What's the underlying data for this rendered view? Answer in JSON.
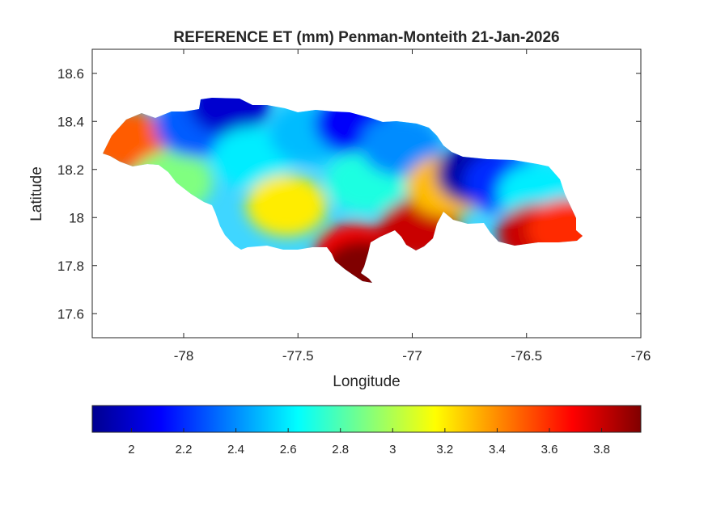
{
  "title": "REFERENCE ET (mm) Penman-Monteith 21-Jan-2026",
  "axes": {
    "xlabel": "Longitude",
    "ylabel": "Latitude",
    "xlim": [
      -78.4,
      -76
    ],
    "ylim": [
      17.5,
      18.7
    ],
    "xticks": [
      -78,
      -77.5,
      -77,
      -76.5,
      -76
    ],
    "xtick_labels": [
      "-78",
      "-77.5",
      "-77",
      "-76.5",
      "-76"
    ],
    "yticks": [
      17.6,
      17.8,
      18,
      18.2,
      18.4,
      18.6
    ],
    "ytick_labels": [
      "17.6",
      "17.8",
      "18",
      "18.2",
      "18.4",
      "18.6"
    ],
    "grid": false
  },
  "colorbar": {
    "location": "below",
    "colormap": "jet",
    "clim": [
      1.85,
      3.95
    ],
    "ticks": [
      2,
      2.2,
      2.4,
      2.6,
      2.8,
      3,
      3.2,
      3.4,
      3.6,
      3.8
    ],
    "tick_labels": [
      "2",
      "2.2",
      "2.4",
      "2.6",
      "2.8",
      "3",
      "3.2",
      "3.4",
      "3.6",
      "3.8"
    ],
    "colors": [
      "#00008f",
      "#0000ff",
      "#0080ff",
      "#00ffff",
      "#80ff80",
      "#ffff00",
      "#ff8000",
      "#ff0000",
      "#800000"
    ]
  },
  "chart_data": {
    "type": "heatmap",
    "title": "REFERENCE ET (mm) Penman-Monteith 21-Jan-2026",
    "xlabel": "Longitude",
    "ylabel": "Latitude",
    "xlim": [
      -78.4,
      -76
    ],
    "ylim": [
      17.5,
      18.7
    ],
    "value_range": [
      1.85,
      3.95
    ],
    "regions": [
      {
        "lon": -78.25,
        "lat": 18.32,
        "value": 3.5
      },
      {
        "lon": -78.05,
        "lat": 18.15,
        "value": 2.9
      },
      {
        "lon": -77.95,
        "lat": 18.38,
        "value": 2.3
      },
      {
        "lon": -77.8,
        "lat": 18.47,
        "value": 2.0
      },
      {
        "lon": -77.7,
        "lat": 18.25,
        "value": 2.6
      },
      {
        "lon": -77.55,
        "lat": 18.05,
        "value": 3.2
      },
      {
        "lon": -77.45,
        "lat": 18.35,
        "value": 2.5
      },
      {
        "lon": -77.25,
        "lat": 18.39,
        "value": 2.1
      },
      {
        "lon": -77.2,
        "lat": 18.15,
        "value": 2.7
      },
      {
        "lon": -77.25,
        "lat": 17.85,
        "value": 3.7
      },
      {
        "lon": -77.22,
        "lat": 17.78,
        "value": 3.95
      },
      {
        "lon": -77.05,
        "lat": 18.3,
        "value": 2.4
      },
      {
        "lon": -76.97,
        "lat": 17.95,
        "value": 3.8
      },
      {
        "lon": -76.85,
        "lat": 18.13,
        "value": 3.3
      },
      {
        "lon": -76.72,
        "lat": 18.18,
        "value": 1.9
      },
      {
        "lon": -76.6,
        "lat": 18.15,
        "value": 2.2
      },
      {
        "lon": -76.45,
        "lat": 18.1,
        "value": 2.6
      },
      {
        "lon": -76.45,
        "lat": 17.93,
        "value": 3.8
      },
      {
        "lon": -76.32,
        "lat": 17.95,
        "value": 3.6
      }
    ]
  }
}
